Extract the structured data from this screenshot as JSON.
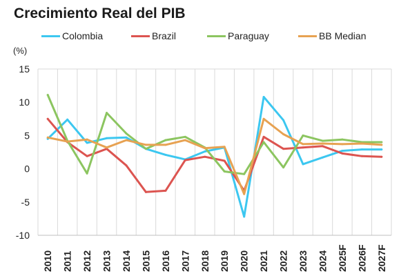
{
  "chart_data": {
    "type": "line",
    "title": "Crecimiento Real del PIB",
    "ylabel": "(%)",
    "xlabel": "",
    "ylim": [
      -10,
      15
    ],
    "yticks": [
      15,
      10,
      5,
      0,
      -5,
      -10
    ],
    "grid": "vertical",
    "legend_position": "top",
    "categories": [
      "2010",
      "2011",
      "2012",
      "2013",
      "2014",
      "2015",
      "2016",
      "2017",
      "2018",
      "2019",
      "2020",
      "2021",
      "2022",
      "2023",
      "2024",
      "2025F",
      "2026F",
      "2027F"
    ],
    "series": [
      {
        "name": "Colombia",
        "color": "#3cc7f0",
        "values": [
          4.5,
          7.4,
          3.9,
          4.6,
          4.7,
          3.0,
          2.1,
          1.4,
          2.6,
          3.2,
          -7.2,
          10.8,
          7.3,
          0.7,
          1.7,
          2.7,
          2.9,
          2.9
        ]
      },
      {
        "name": "Brazil",
        "color": "#dc5450",
        "values": [
          7.5,
          4.0,
          1.9,
          3.0,
          0.5,
          -3.5,
          -3.3,
          1.3,
          1.8,
          1.2,
          -3.3,
          4.8,
          3.0,
          3.2,
          3.4,
          2.3,
          1.9,
          1.8
        ]
      },
      {
        "name": "Paraguay",
        "color": "#8cc560",
        "values": [
          11.1,
          4.2,
          -0.7,
          8.4,
          5.3,
          3.0,
          4.3,
          4.8,
          3.2,
          -0.4,
          -0.8,
          4.0,
          0.2,
          5.0,
          4.2,
          4.4,
          4.0,
          4.0
        ]
      },
      {
        "name": "BB Median",
        "color": "#e7a252",
        "values": [
          4.7,
          4.1,
          4.4,
          3.2,
          4.3,
          3.6,
          3.6,
          4.3,
          3.1,
          3.3,
          -3.8,
          7.5,
          5.2,
          3.7,
          3.8,
          3.7,
          3.8,
          3.6
        ]
      }
    ]
  }
}
